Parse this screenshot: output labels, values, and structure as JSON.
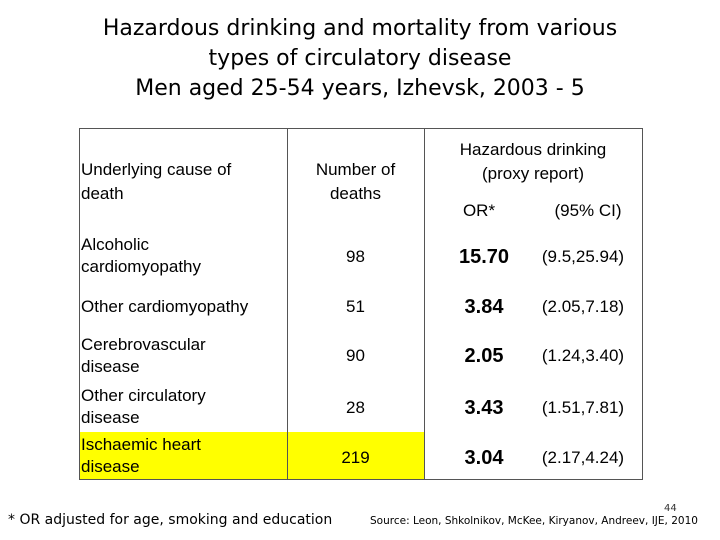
{
  "title": {
    "line1": "Hazardous drinking and mortality from various",
    "line2": "types of circulatory disease",
    "line3": "Men aged 25-54 years, Izhevsk, 2003 - 5"
  },
  "table": {
    "header": {
      "cause": [
        "Underlying cause of",
        "death"
      ],
      "deaths": [
        "Number of",
        "deaths"
      ],
      "hazard": [
        "Hazardous drinking",
        "(proxy report)"
      ],
      "or": "OR*",
      "ci": "(95% CI)"
    },
    "rows": [
      {
        "cause": [
          "Alcoholic",
          "cardiomyopathy"
        ],
        "deaths": "98",
        "or": "15.70",
        "ci": "(9.5,25.94)",
        "highlight": false
      },
      {
        "cause": [
          "Other cardiomyopathy"
        ],
        "deaths": "51",
        "or": "3.84",
        "ci": "(2.05,7.18)",
        "highlight": false
      },
      {
        "cause": [
          "Cerebrovascular",
          "disease"
        ],
        "deaths": "90",
        "or": "2.05",
        "ci": "(1.24,3.40)",
        "highlight": false
      },
      {
        "cause": [
          "Other circulatory",
          "disease"
        ],
        "deaths": "28",
        "or": "3.43",
        "ci": "(1.51,7.81)",
        "highlight": false
      },
      {
        "cause": [
          "Ischaemic heart",
          "disease"
        ],
        "deaths": "219",
        "or": "3.04",
        "ci": "(2.17,4.24)",
        "highlight": true
      }
    ]
  },
  "footnote": "* OR adjusted for age, smoking and education",
  "source": "Source: Leon, Shkolnikov, McKee, Kiryanov, Andreev, IJE, 2010",
  "page_number": "44",
  "colors": {
    "highlight": "#ffff00",
    "border": "#555555"
  }
}
